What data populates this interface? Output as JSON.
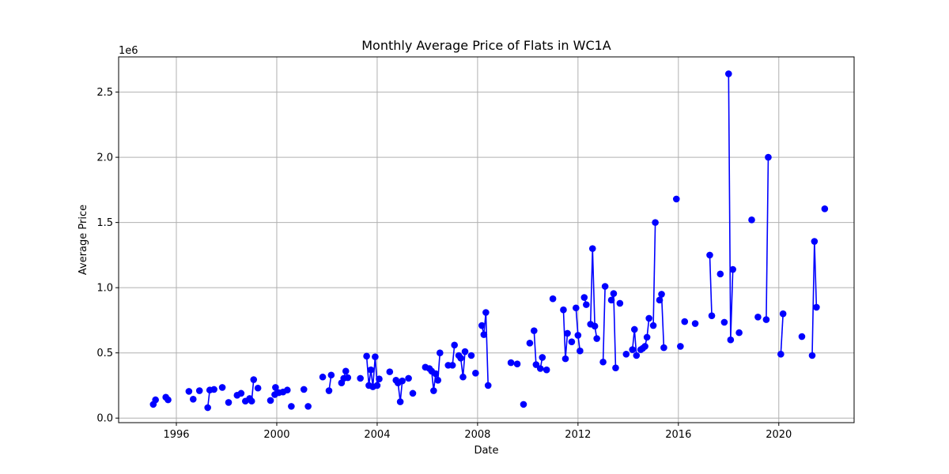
{
  "chart_data": {
    "type": "line",
    "title": "Monthly Average Price of Flats in WC1A",
    "xlabel": "Date",
    "ylabel": "Average Price",
    "y_offset_label": "1e6",
    "xlim": [
      1993.7,
      2023.0
    ],
    "ylim": [
      -0.035,
      2.77
    ],
    "y_unit_multiplier": 1000000,
    "grid": true,
    "x_ticks": [
      1996,
      2000,
      2004,
      2008,
      2012,
      2016,
      2020
    ],
    "y_ticks": [
      0.0,
      0.5,
      1.0,
      1.5,
      2.0,
      2.5
    ],
    "y_tick_labels": [
      "0.0",
      "0.5",
      "1.0",
      "1.5",
      "2.0",
      "2.5"
    ],
    "series": [
      {
        "color": "#0000ff",
        "marker": "circle",
        "points": [
          [
            1995.08,
            0.105
          ],
          [
            1995.17,
            0.14
          ],
          [
            1995.58,
            0.16
          ],
          [
            1995.67,
            0.14
          ],
          [
            1996.5,
            0.205
          ],
          [
            1996.67,
            0.145
          ],
          [
            1996.92,
            0.21
          ],
          [
            1997.25,
            0.08
          ],
          [
            1997.33,
            0.215
          ],
          [
            1997.5,
            0.22
          ],
          [
            1997.83,
            0.235
          ],
          [
            1998.08,
            0.12
          ],
          [
            1998.42,
            0.175
          ],
          [
            1998.58,
            0.19
          ],
          [
            1998.75,
            0.13
          ],
          [
            1998.92,
            0.15
          ],
          [
            1999.0,
            0.13
          ],
          [
            1999.08,
            0.295
          ],
          [
            1999.25,
            0.23
          ],
          [
            1999.75,
            0.135
          ],
          [
            1999.92,
            0.18
          ],
          [
            1999.95,
            0.235
          ],
          [
            2000.08,
            0.195
          ],
          [
            2000.25,
            0.2
          ],
          [
            2000.42,
            0.215
          ],
          [
            2000.58,
            0.09
          ],
          [
            2001.08,
            0.22
          ],
          [
            2001.25,
            0.09
          ],
          [
            2001.83,
            0.315
          ],
          [
            2002.08,
            0.21
          ],
          [
            2002.17,
            0.33
          ],
          [
            2002.58,
            0.27
          ],
          [
            2002.67,
            0.305
          ],
          [
            2002.75,
            0.36
          ],
          [
            2002.83,
            0.31
          ],
          [
            2003.33,
            0.305
          ],
          [
            2003.58,
            0.475
          ],
          [
            2003.67,
            0.25
          ],
          [
            2003.75,
            0.37
          ],
          [
            2003.83,
            0.24
          ],
          [
            2003.92,
            0.47
          ],
          [
            2004.0,
            0.25
          ],
          [
            2004.08,
            0.3
          ],
          [
            2004.5,
            0.355
          ],
          [
            2004.75,
            0.29
          ],
          [
            2004.83,
            0.27
          ],
          [
            2004.92,
            0.125
          ],
          [
            2005.0,
            0.285
          ],
          [
            2005.25,
            0.305
          ],
          [
            2005.42,
            0.19
          ],
          [
            2005.92,
            0.39
          ],
          [
            2006.08,
            0.38
          ],
          [
            2006.17,
            0.36
          ],
          [
            2006.25,
            0.21
          ],
          [
            2006.33,
            0.34
          ],
          [
            2006.42,
            0.29
          ],
          [
            2006.5,
            0.5
          ],
          [
            2006.83,
            0.405
          ],
          [
            2007.0,
            0.405
          ],
          [
            2007.08,
            0.56
          ],
          [
            2007.25,
            0.48
          ],
          [
            2007.33,
            0.46
          ],
          [
            2007.42,
            0.315
          ],
          [
            2007.5,
            0.51
          ],
          [
            2007.75,
            0.48
          ],
          [
            2007.92,
            0.345
          ],
          [
            2008.17,
            0.71
          ],
          [
            2008.25,
            0.64
          ],
          [
            2008.33,
            0.81
          ],
          [
            2008.42,
            0.25
          ],
          [
            2009.33,
            0.425
          ],
          [
            2009.58,
            0.415
          ],
          [
            2009.83,
            0.105
          ],
          [
            2010.08,
            0.575
          ],
          [
            2010.25,
            0.67
          ],
          [
            2010.33,
            0.41
          ],
          [
            2010.5,
            0.38
          ],
          [
            2010.58,
            0.465
          ],
          [
            2010.75,
            0.37
          ],
          [
            2011.0,
            0.915
          ],
          [
            2011.42,
            0.83
          ],
          [
            2011.5,
            0.455
          ],
          [
            2011.58,
            0.65
          ],
          [
            2011.75,
            0.585
          ],
          [
            2011.92,
            0.845
          ],
          [
            2012.0,
            0.635
          ],
          [
            2012.08,
            0.515
          ],
          [
            2012.25,
            0.925
          ],
          [
            2012.33,
            0.87
          ],
          [
            2012.5,
            0.72
          ],
          [
            2012.58,
            1.3
          ],
          [
            2012.67,
            0.705
          ],
          [
            2012.75,
            0.61
          ],
          [
            2013.0,
            0.43
          ],
          [
            2013.08,
            1.01
          ],
          [
            2013.33,
            0.905
          ],
          [
            2013.42,
            0.955
          ],
          [
            2013.5,
            0.385
          ],
          [
            2013.67,
            0.88
          ],
          [
            2013.92,
            0.49
          ],
          [
            2014.17,
            0.525
          ],
          [
            2014.25,
            0.68
          ],
          [
            2014.33,
            0.48
          ],
          [
            2014.5,
            0.525
          ],
          [
            2014.58,
            0.535
          ],
          [
            2014.67,
            0.55
          ],
          [
            2014.75,
            0.62
          ],
          [
            2014.83,
            0.765
          ],
          [
            2015.0,
            0.71
          ],
          [
            2015.08,
            1.5
          ],
          [
            2015.25,
            0.905
          ],
          [
            2015.33,
            0.95
          ],
          [
            2015.42,
            0.54
          ],
          [
            2015.92,
            1.68
          ],
          [
            2016.08,
            0.55
          ],
          [
            2016.25,
            0.74
          ],
          [
            2016.67,
            0.725
          ],
          [
            2017.25,
            1.25
          ],
          [
            2017.33,
            0.785
          ],
          [
            2017.67,
            1.105
          ],
          [
            2017.83,
            0.735
          ],
          [
            2018.0,
            2.64
          ],
          [
            2018.08,
            0.6
          ],
          [
            2018.17,
            1.14
          ],
          [
            2018.42,
            0.655
          ],
          [
            2018.92,
            1.52
          ],
          [
            2019.17,
            0.775
          ],
          [
            2019.5,
            0.755
          ],
          [
            2019.58,
            2.0
          ],
          [
            2020.08,
            0.49
          ],
          [
            2020.17,
            0.8
          ],
          [
            2020.92,
            0.625
          ],
          [
            2021.33,
            0.48
          ],
          [
            2021.42,
            1.355
          ],
          [
            2021.5,
            0.85
          ],
          [
            2021.83,
            1.605
          ]
        ]
      }
    ]
  }
}
